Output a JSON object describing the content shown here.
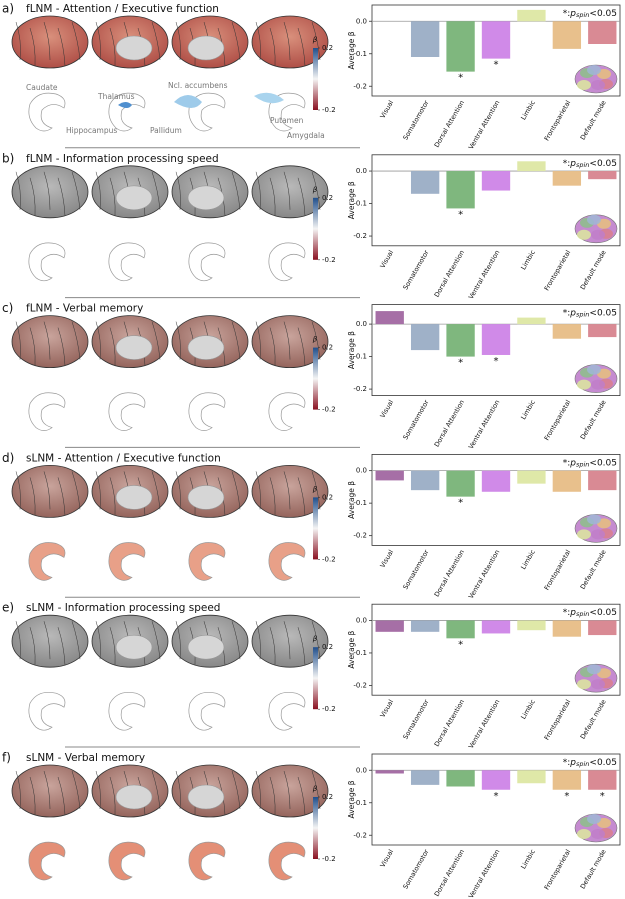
{
  "chart_data": [
    {
      "type": "bar",
      "panel_label": "a)",
      "title": "fLNM - Attention / Executive function",
      "ylabel": "Average β",
      "significance_note": {
        "marker": "*:",
        "symbol": "p",
        "subscript": "spin",
        "threshold": "<0.05"
      },
      "colorbar": {
        "label": "β",
        "ticks": [
          0.2,
          -0.2
        ]
      },
      "structure_labels": [
        "Caudate",
        "Thalamus",
        "Ncl. accumbens",
        "Hippocampus",
        "Pallidum",
        "Putamen",
        "Amygdala"
      ],
      "categories": [
        "Visual",
        "Somatomotor",
        "Dorsal Attention",
        "Ventral Attention",
        "Limbic",
        "Frontoparietal",
        "Default mode"
      ],
      "values": [
        0,
        -0.11,
        -0.155,
        -0.115,
        0.035,
        -0.085,
        -0.07
      ],
      "colors": [
        "#a66fa6",
        "#9fb1c8",
        "#7fb77e",
        "#d08ae8",
        "#dfe8a8",
        "#e8c08c",
        "#d98a94"
      ],
      "star": "*",
      "significant": [
        false,
        false,
        true,
        true,
        false,
        false,
        false
      ],
      "ylim": [
        -0.23,
        0.05
      ],
      "yticks": [
        {
          "value": 0,
          "label": "0.0"
        },
        -0.1,
        -0.2
      ]
    },
    {
      "type": "bar",
      "panel_label": "b)",
      "title": "fLNM - Information processing speed",
      "ylabel": "Average β",
      "significance_note": {
        "marker": "*:",
        "symbol": "p",
        "subscript": "spin",
        "threshold": "<0.05"
      },
      "colorbar": {
        "label": "β",
        "ticks": [
          0.2,
          -0.2
        ]
      },
      "categories": [
        "Visual",
        "Somatomotor",
        "Dorsal Attention",
        "Ventral Attention",
        "Limbic",
        "Frontoparietal",
        "Default mode"
      ],
      "values": [
        0,
        -0.07,
        -0.115,
        -0.06,
        0.03,
        -0.045,
        -0.025
      ],
      "colors": [
        "#a66fa6",
        "#9fb1c8",
        "#7fb77e",
        "#d08ae8",
        "#dfe8a8",
        "#e8c08c",
        "#d98a94"
      ],
      "star": "*",
      "significant": [
        false,
        false,
        true,
        false,
        false,
        false,
        false
      ],
      "ylim": [
        -0.23,
        0.05
      ],
      "yticks": [
        {
          "value": 0,
          "label": "0.0"
        },
        -0.1,
        -0.2
      ]
    },
    {
      "type": "bar",
      "panel_label": "c)",
      "title": "fLNM - Verbal memory",
      "ylabel": "Average β",
      "significance_note": {
        "marker": "*:",
        "symbol": "p",
        "subscript": "spin",
        "threshold": "<0.05"
      },
      "colorbar": {
        "label": "β",
        "ticks": [
          0.2,
          -0.2
        ]
      },
      "categories": [
        "Visual",
        "Somatomotor",
        "Dorsal Attention",
        "Ventral Attention",
        "Limbic",
        "Frontoparietal",
        "Default mode"
      ],
      "values": [
        0.04,
        -0.08,
        -0.1,
        -0.095,
        0.02,
        -0.045,
        -0.04
      ],
      "colors": [
        "#a66fa6",
        "#9fb1c8",
        "#7fb77e",
        "#d08ae8",
        "#dfe8a8",
        "#e8c08c",
        "#d98a94"
      ],
      "star": "*",
      "significant": [
        false,
        false,
        true,
        true,
        false,
        false,
        false
      ],
      "ylim": [
        -0.22,
        0.06
      ],
      "yticks": [
        {
          "value": 0,
          "label": "0.0"
        },
        -0.1,
        -0.2
      ]
    },
    {
      "type": "bar",
      "panel_label": "d)",
      "title": "sLNM - Attention / Executive function",
      "ylabel": "Average β",
      "significance_note": {
        "marker": "*:",
        "symbol": "p",
        "subscript": "spin",
        "threshold": "<0.05"
      },
      "colorbar": {
        "label": "β",
        "ticks": [
          0.2,
          -0.2
        ]
      },
      "categories": [
        "Visual",
        "Somatomotor",
        "Dorsal Attention",
        "Ventral Attention",
        "Limbic",
        "Frontoparietal",
        "Default mode"
      ],
      "values": [
        -0.03,
        -0.06,
        -0.08,
        -0.065,
        -0.04,
        -0.065,
        -0.06
      ],
      "colors": [
        "#a66fa6",
        "#9fb1c8",
        "#7fb77e",
        "#d08ae8",
        "#dfe8a8",
        "#e8c08c",
        "#d98a94"
      ],
      "star": "*",
      "significant": [
        false,
        false,
        true,
        false,
        false,
        false,
        false
      ],
      "ylim": [
        -0.23,
        0.05
      ],
      "yticks": [
        {
          "value": 0,
          "label": "0.0"
        },
        -0.1,
        -0.2
      ]
    },
    {
      "type": "bar",
      "panel_label": "e)",
      "title": "sLNM - Information processing speed",
      "ylabel": "Average β",
      "significance_note": {
        "marker": "*:",
        "symbol": "p",
        "subscript": "spin",
        "threshold": "<0.05"
      },
      "colorbar": {
        "label": "β",
        "ticks": [
          0.2,
          -0.2
        ]
      },
      "categories": [
        "Visual",
        "Somatomotor",
        "Dorsal Attention",
        "Ventral Attention",
        "Limbic",
        "Frontoparietal",
        "Default mode"
      ],
      "values": [
        -0.035,
        -0.035,
        -0.055,
        -0.04,
        -0.03,
        -0.05,
        -0.045
      ],
      "colors": [
        "#a66fa6",
        "#9fb1c8",
        "#7fb77e",
        "#d08ae8",
        "#dfe8a8",
        "#e8c08c",
        "#d98a94"
      ],
      "star": "*",
      "significant": [
        false,
        false,
        true,
        false,
        false,
        false,
        false
      ],
      "ylim": [
        -0.23,
        0.05
      ],
      "yticks": [
        {
          "value": 0,
          "label": "0.0"
        },
        -0.1,
        -0.2
      ]
    },
    {
      "type": "bar",
      "panel_label": "f)",
      "title": "sLNM - Verbal memory",
      "ylabel": "Average β",
      "significance_note": {
        "marker": "*:",
        "symbol": "p",
        "subscript": "spin",
        "threshold": "<0.05"
      },
      "colorbar": {
        "label": "β",
        "ticks": [
          0.2,
          -0.2
        ]
      },
      "categories": [
        "Visual",
        "Somatomotor",
        "Dorsal Attention",
        "Ventral Attention",
        "Limbic",
        "Frontoparietal",
        "Default mode"
      ],
      "values": [
        -0.01,
        -0.045,
        -0.05,
        -0.06,
        -0.04,
        -0.06,
        -0.06
      ],
      "colors": [
        "#a66fa6",
        "#9fb1c8",
        "#7fb77e",
        "#d08ae8",
        "#dfe8a8",
        "#e8c08c",
        "#d98a94"
      ],
      "star": "*",
      "significant": [
        false,
        false,
        false,
        true,
        false,
        true,
        true
      ],
      "ylim": [
        -0.23,
        0.05
      ],
      "yticks": [
        {
          "value": 0,
          "label": "0.0"
        },
        -0.1,
        -0.2
      ]
    }
  ]
}
